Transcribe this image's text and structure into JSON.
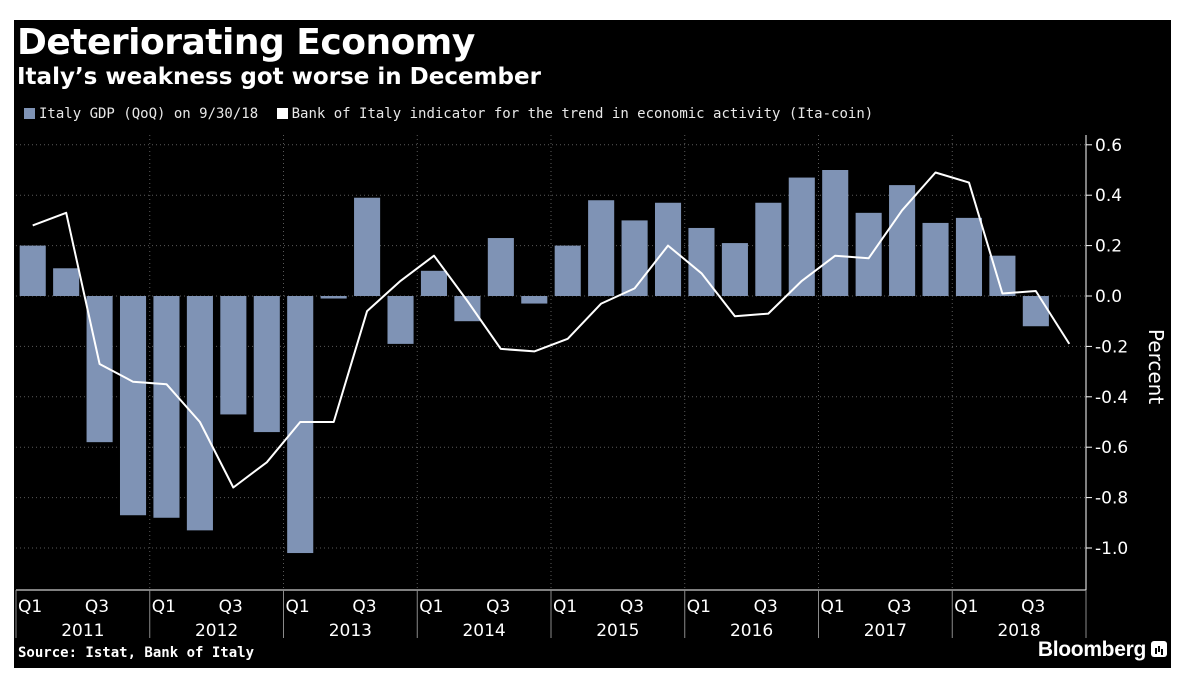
{
  "title": "Deteriorating Economy",
  "subtitle": "Italy’s weakness got worse in December",
  "source": "Source: Istat, Bank of Italy",
  "brand": "Bloomberg",
  "colors": {
    "bar": "#7f93b5",
    "line": "#ffffff",
    "background": "#000000",
    "axis": "#ffffff"
  },
  "chart_data": {
    "type": "bar",
    "ylabel": "Percent",
    "ylim": [
      -1.15,
      0.6
    ],
    "yticks": [
      "0.6",
      "0.4",
      "0.2",
      "0.0",
      "-0.2",
      "-0.4",
      "-0.6",
      "-0.8",
      "-1.0"
    ],
    "ytick_values": [
      0.6,
      0.4,
      0.2,
      0.0,
      -0.2,
      -0.4,
      -0.6,
      -0.8,
      -1.0
    ],
    "y_axis_position": "right",
    "grid": true,
    "legend_position": "top-left",
    "categories": [
      "Q1 2011",
      "Q2 2011",
      "Q3 2011",
      "Q4 2011",
      "Q1 2012",
      "Q2 2012",
      "Q3 2012",
      "Q4 2012",
      "Q1 2013",
      "Q2 2013",
      "Q3 2013",
      "Q4 2013",
      "Q1 2014",
      "Q2 2014",
      "Q3 2014",
      "Q4 2014",
      "Q1 2015",
      "Q2 2015",
      "Q3 2015",
      "Q4 2015",
      "Q1 2016",
      "Q2 2016",
      "Q3 2016",
      "Q4 2016",
      "Q1 2017",
      "Q2 2017",
      "Q3 2017",
      "Q4 2017",
      "Q1 2018",
      "Q2 2018",
      "Q3 2018",
      "Q4 2018"
    ],
    "quarter_ticks": [
      "Q1",
      "Q3",
      "Q1",
      "Q3",
      "Q1",
      "Q3",
      "Q1",
      "Q3",
      "Q1",
      "Q3",
      "Q1",
      "Q3",
      "Q1",
      "Q3",
      "Q1",
      "Q3"
    ],
    "year_labels": [
      "2011",
      "2012",
      "2013",
      "2014",
      "2015",
      "2016",
      "2017",
      "2018"
    ],
    "series": [
      {
        "name": "Italy GDP (QoQ) on 9/30/18",
        "type": "bar",
        "values": [
          0.2,
          0.11,
          -0.58,
          -0.87,
          -0.88,
          -0.93,
          -0.47,
          -0.54,
          -1.02,
          -0.01,
          0.39,
          -0.19,
          0.1,
          -0.1,
          0.23,
          -0.03,
          0.2,
          0.38,
          0.3,
          0.37,
          0.27,
          0.21,
          0.37,
          0.47,
          0.5,
          0.33,
          0.44,
          0.29,
          0.31,
          0.16,
          -0.12,
          null
        ]
      },
      {
        "name": "Bank of Italy indicator for the trend in economic activity (Ita-coin)",
        "type": "line",
        "values": [
          0.28,
          0.33,
          -0.27,
          -0.34,
          -0.35,
          -0.5,
          -0.76,
          -0.66,
          -0.5,
          -0.5,
          -0.06,
          0.06,
          0.16,
          -0.02,
          -0.21,
          -0.22,
          -0.17,
          -0.03,
          0.03,
          0.2,
          0.09,
          -0.08,
          -0.07,
          0.06,
          0.16,
          0.15,
          0.34,
          0.49,
          0.45,
          0.01,
          0.02,
          -0.19
        ]
      }
    ]
  }
}
